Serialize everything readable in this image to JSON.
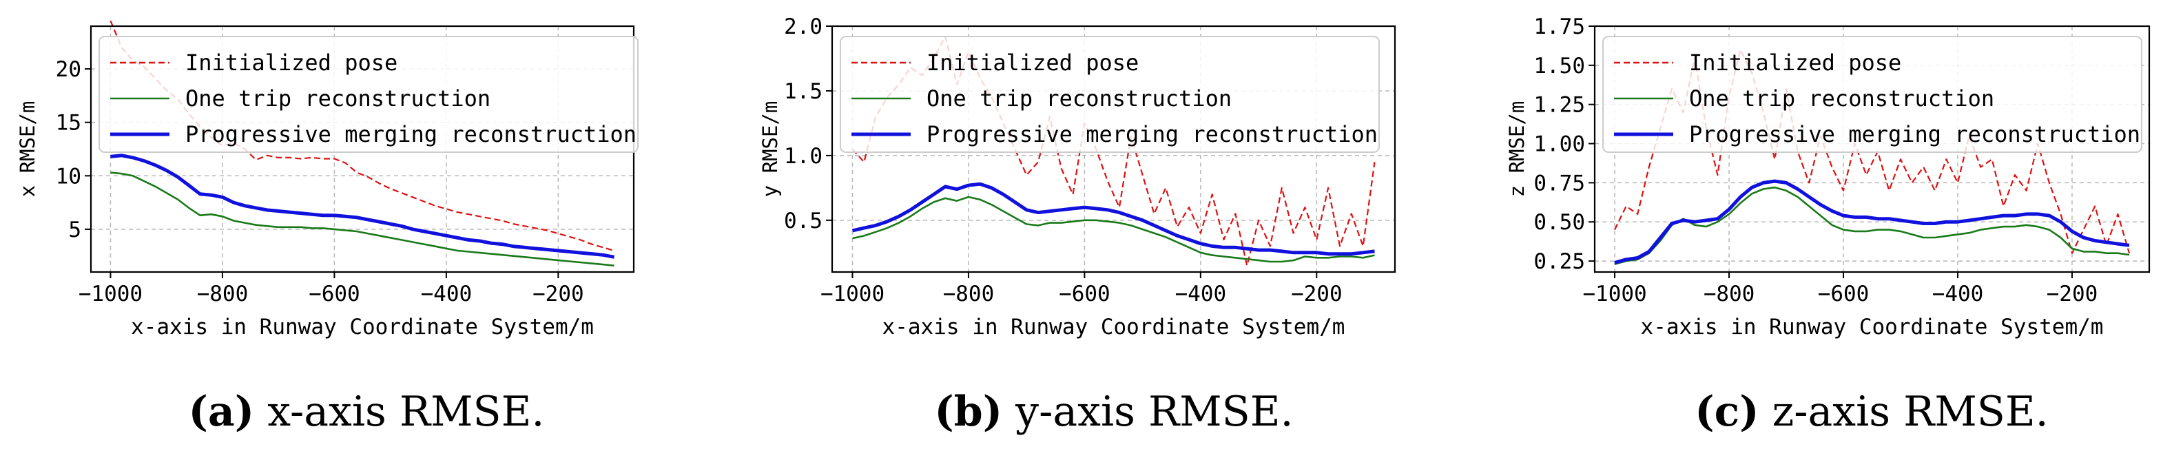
{
  "chart_data": [
    {
      "type": "line",
      "caption_letter": "(a)",
      "caption_text": " x-axis RMSE.",
      "xlabel": "x-axis in Runway Coordinate System/m",
      "ylabel": "x RMSE/m",
      "xlim": [
        -1035,
        -65
      ],
      "ylim": [
        1,
        24
      ],
      "xticks": [
        -1000,
        -800,
        -600,
        -400,
        -200
      ],
      "xtick_labels": [
        "−1000",
        "−800",
        "−600",
        "−400",
        "−200"
      ],
      "yticks": [
        5,
        10,
        15,
        20
      ],
      "ytick_labels": [
        "5",
        "10",
        "15",
        "20"
      ],
      "grid": true,
      "legend_position": "upper-left",
      "series": [
        {
          "name": "Initialized pose",
          "color": "#dd1111",
          "style": "dashed",
          "x": [
            -1000,
            -980,
            -960,
            -940,
            -920,
            -900,
            -880,
            -860,
            -840,
            -820,
            -800,
            -780,
            -760,
            -740,
            -720,
            -700,
            -680,
            -660,
            -640,
            -620,
            -600,
            -580,
            -560,
            -540,
            -520,
            -500,
            -480,
            -460,
            -440,
            -420,
            -400,
            -380,
            -360,
            -340,
            -320,
            -300,
            -280,
            -260,
            -240,
            -220,
            -200,
            -180,
            -160,
            -140,
            -120,
            -100
          ],
          "y": [
            24.5,
            22.0,
            20.8,
            20.2,
            19.1,
            18.0,
            17.2,
            15.8,
            14.6,
            13.6,
            12.8,
            13.1,
            12.5,
            11.5,
            11.9,
            11.7,
            11.7,
            11.6,
            11.7,
            11.6,
            11.6,
            11.2,
            10.3,
            9.9,
            9.3,
            8.8,
            8.4,
            8.0,
            7.6,
            7.2,
            6.9,
            6.6,
            6.4,
            6.2,
            6.0,
            5.8,
            5.5,
            5.3,
            5.1,
            4.9,
            4.6,
            4.3,
            4.0,
            3.6,
            3.3,
            3.0
          ]
        },
        {
          "name": "One trip reconstruction",
          "color": "#1a7a1a",
          "style": "solid",
          "x": [
            -1000,
            -980,
            -960,
            -940,
            -920,
            -900,
            -880,
            -860,
            -840,
            -820,
            -800,
            -780,
            -760,
            -740,
            -720,
            -700,
            -680,
            -660,
            -640,
            -620,
            -600,
            -580,
            -560,
            -540,
            -520,
            -500,
            -480,
            -460,
            -440,
            -420,
            -400,
            -380,
            -360,
            -340,
            -320,
            -300,
            -280,
            -260,
            -240,
            -220,
            -200,
            -180,
            -160,
            -140,
            -120,
            -100
          ],
          "y": [
            10.3,
            10.2,
            10.0,
            9.5,
            9.0,
            8.4,
            7.8,
            7.0,
            6.3,
            6.4,
            6.2,
            5.8,
            5.6,
            5.4,
            5.3,
            5.2,
            5.2,
            5.2,
            5.1,
            5.1,
            5.0,
            4.9,
            4.8,
            4.6,
            4.4,
            4.2,
            4.0,
            3.8,
            3.6,
            3.4,
            3.2,
            3.0,
            2.9,
            2.8,
            2.7,
            2.6,
            2.5,
            2.4,
            2.3,
            2.2,
            2.1,
            2.0,
            1.9,
            1.8,
            1.7,
            1.6
          ]
        },
        {
          "name": "Progressive merging reconstruction",
          "color": "#1111dd",
          "style": "solid",
          "x": [
            -1000,
            -980,
            -960,
            -940,
            -920,
            -900,
            -880,
            -860,
            -840,
            -820,
            -800,
            -780,
            -760,
            -740,
            -720,
            -700,
            -680,
            -660,
            -640,
            -620,
            -600,
            -580,
            -560,
            -540,
            -520,
            -500,
            -480,
            -460,
            -440,
            -420,
            -400,
            -380,
            -360,
            -340,
            -320,
            -300,
            -280,
            -260,
            -240,
            -220,
            -200,
            -180,
            -160,
            -140,
            -120,
            -100
          ],
          "y": [
            11.8,
            11.9,
            11.7,
            11.4,
            11.0,
            10.5,
            9.9,
            9.1,
            8.3,
            8.2,
            8.0,
            7.5,
            7.2,
            7.0,
            6.8,
            6.7,
            6.6,
            6.5,
            6.4,
            6.3,
            6.3,
            6.2,
            6.1,
            5.9,
            5.7,
            5.5,
            5.3,
            5.0,
            4.8,
            4.6,
            4.4,
            4.2,
            4.0,
            3.9,
            3.7,
            3.6,
            3.4,
            3.3,
            3.2,
            3.1,
            3.0,
            2.9,
            2.8,
            2.7,
            2.6,
            2.4
          ]
        }
      ]
    },
    {
      "type": "line",
      "caption_letter": "(b)",
      "caption_text": " y-axis RMSE.",
      "xlabel": "x-axis in Runway Coordinate System/m",
      "ylabel": "y RMSE/m",
      "xlim": [
        -1035,
        -65
      ],
      "ylim": [
        0.1,
        2.0
      ],
      "xticks": [
        -1000,
        -800,
        -600,
        -400,
        -200
      ],
      "xtick_labels": [
        "−1000",
        "−800",
        "−600",
        "−400",
        "−200"
      ],
      "yticks": [
        0.5,
        1.0,
        1.5,
        2.0
      ],
      "ytick_labels": [
        "0.5",
        "1.0",
        "1.5",
        "2.0"
      ],
      "grid": true,
      "legend_position": "upper-left",
      "series": [
        {
          "name": "Initialized pose",
          "color": "#dd1111",
          "style": "dashed",
          "x": [
            -1000,
            -980,
            -960,
            -940,
            -920,
            -900,
            -880,
            -860,
            -840,
            -820,
            -800,
            -780,
            -760,
            -740,
            -720,
            -700,
            -680,
            -660,
            -640,
            -620,
            -600,
            -580,
            -560,
            -540,
            -520,
            -500,
            -480,
            -460,
            -440,
            -420,
            -400,
            -380,
            -360,
            -340,
            -320,
            -300,
            -280,
            -260,
            -240,
            -220,
            -200,
            -180,
            -160,
            -140,
            -120,
            -100
          ],
          "y": [
            1.05,
            0.95,
            1.3,
            1.45,
            1.55,
            1.68,
            1.62,
            1.75,
            1.92,
            1.55,
            1.8,
            1.6,
            1.45,
            1.25,
            1.05,
            0.85,
            0.95,
            1.3,
            0.9,
            0.7,
            1.25,
            1.05,
            0.8,
            0.6,
            1.15,
            0.85,
            0.55,
            0.75,
            0.45,
            0.6,
            0.4,
            0.7,
            0.35,
            0.55,
            0.15,
            0.5,
            0.3,
            0.75,
            0.4,
            0.6,
            0.35,
            0.75,
            0.3,
            0.55,
            0.3,
            0.95
          ]
        },
        {
          "name": "One trip reconstruction",
          "color": "#1a7a1a",
          "style": "solid",
          "x": [
            -1000,
            -980,
            -960,
            -940,
            -920,
            -900,
            -880,
            -860,
            -840,
            -820,
            -800,
            -780,
            -760,
            -740,
            -720,
            -700,
            -680,
            -660,
            -640,
            -620,
            -600,
            -580,
            -560,
            -540,
            -520,
            -500,
            -480,
            -460,
            -440,
            -420,
            -400,
            -380,
            -360,
            -340,
            -320,
            -300,
            -280,
            -260,
            -240,
            -220,
            -200,
            -180,
            -160,
            -140,
            -120,
            -100
          ],
          "y": [
            0.36,
            0.38,
            0.41,
            0.44,
            0.48,
            0.53,
            0.59,
            0.64,
            0.67,
            0.65,
            0.68,
            0.66,
            0.62,
            0.57,
            0.52,
            0.47,
            0.46,
            0.48,
            0.48,
            0.49,
            0.5,
            0.5,
            0.49,
            0.48,
            0.46,
            0.43,
            0.4,
            0.37,
            0.33,
            0.29,
            0.25,
            0.23,
            0.22,
            0.21,
            0.2,
            0.19,
            0.18,
            0.18,
            0.19,
            0.22,
            0.21,
            0.21,
            0.22,
            0.22,
            0.21,
            0.23
          ]
        },
        {
          "name": "Progressive merging reconstruction",
          "color": "#1111dd",
          "style": "solid",
          "x": [
            -1000,
            -980,
            -960,
            -940,
            -920,
            -900,
            -880,
            -860,
            -840,
            -820,
            -800,
            -780,
            -760,
            -740,
            -720,
            -700,
            -680,
            -660,
            -640,
            -620,
            -600,
            -580,
            -560,
            -540,
            -520,
            -500,
            -480,
            -460,
            -440,
            -420,
            -400,
            -380,
            -360,
            -340,
            -320,
            -300,
            -280,
            -260,
            -240,
            -220,
            -200,
            -180,
            -160,
            -140,
            -120,
            -100
          ],
          "y": [
            0.42,
            0.44,
            0.46,
            0.49,
            0.53,
            0.58,
            0.64,
            0.7,
            0.76,
            0.74,
            0.77,
            0.78,
            0.75,
            0.7,
            0.64,
            0.58,
            0.56,
            0.57,
            0.58,
            0.59,
            0.6,
            0.59,
            0.58,
            0.56,
            0.53,
            0.5,
            0.46,
            0.42,
            0.38,
            0.35,
            0.32,
            0.3,
            0.29,
            0.29,
            0.28,
            0.27,
            0.27,
            0.26,
            0.25,
            0.25,
            0.25,
            0.24,
            0.24,
            0.24,
            0.25,
            0.26
          ]
        }
      ]
    },
    {
      "type": "line",
      "caption_letter": "(c)",
      "caption_text": " z-axis RMSE.",
      "xlabel": "x-axis in Runway Coordinate System/m",
      "ylabel": "z RMSE/m",
      "xlim": [
        -1035,
        -65
      ],
      "ylim": [
        0.18,
        1.75
      ],
      "xticks": [
        -1000,
        -800,
        -600,
        -400,
        -200
      ],
      "xtick_labels": [
        "−1000",
        "−800",
        "−600",
        "−400",
        "−200"
      ],
      "yticks": [
        0.25,
        0.5,
        0.75,
        1.0,
        1.25,
        1.5,
        1.75
      ],
      "ytick_labels": [
        "0.25",
        "0.50",
        "0.75",
        "1.00",
        "1.25",
        "1.50",
        "1.75"
      ],
      "grid": true,
      "legend_position": "upper-left",
      "series": [
        {
          "name": "Initialized pose",
          "color": "#dd1111",
          "style": "dashed",
          "x": [
            -1000,
            -980,
            -960,
            -940,
            -920,
            -900,
            -880,
            -860,
            -840,
            -820,
            -800,
            -780,
            -760,
            -740,
            -720,
            -700,
            -680,
            -660,
            -640,
            -620,
            -600,
            -580,
            -560,
            -540,
            -520,
            -500,
            -480,
            -460,
            -440,
            -420,
            -400,
            -380,
            -360,
            -340,
            -320,
            -300,
            -280,
            -260,
            -240,
            -220,
            -200,
            -180,
            -160,
            -140,
            -120,
            -100
          ],
          "y": [
            0.45,
            0.6,
            0.55,
            0.85,
            1.1,
            1.35,
            1.2,
            1.55,
            1.1,
            0.8,
            1.3,
            1.6,
            1.45,
            1.2,
            0.9,
            1.35,
            0.95,
            0.75,
            1.05,
            0.85,
            0.7,
            1.0,
            0.8,
            0.95,
            0.7,
            0.9,
            0.75,
            0.85,
            0.7,
            0.9,
            0.75,
            1.05,
            0.85,
            0.9,
            0.6,
            0.8,
            0.7,
            1.0,
            0.75,
            0.55,
            0.3,
            0.45,
            0.6,
            0.35,
            0.55,
            0.3
          ]
        },
        {
          "name": "One trip reconstruction",
          "color": "#1a7a1a",
          "style": "solid",
          "x": [
            -1000,
            -980,
            -960,
            -940,
            -920,
            -900,
            -880,
            -860,
            -840,
            -820,
            -800,
            -780,
            -760,
            -740,
            -720,
            -700,
            -680,
            -660,
            -640,
            -620,
            -600,
            -580,
            -560,
            -540,
            -520,
            -500,
            -480,
            -460,
            -440,
            -420,
            -400,
            -380,
            -360,
            -340,
            -320,
            -300,
            -280,
            -260,
            -240,
            -220,
            -200,
            -180,
            -160,
            -140,
            -120,
            -100
          ],
          "y": [
            0.23,
            0.25,
            0.26,
            0.3,
            0.38,
            0.48,
            0.52,
            0.48,
            0.47,
            0.5,
            0.55,
            0.62,
            0.68,
            0.71,
            0.72,
            0.7,
            0.66,
            0.6,
            0.54,
            0.48,
            0.45,
            0.44,
            0.44,
            0.45,
            0.45,
            0.44,
            0.42,
            0.4,
            0.4,
            0.41,
            0.42,
            0.43,
            0.45,
            0.46,
            0.47,
            0.47,
            0.48,
            0.47,
            0.45,
            0.4,
            0.33,
            0.31,
            0.31,
            0.3,
            0.3,
            0.29
          ]
        },
        {
          "name": "Progressive merging reconstruction",
          "color": "#1111dd",
          "style": "solid",
          "x": [
            -1000,
            -980,
            -960,
            -940,
            -920,
            -900,
            -880,
            -860,
            -840,
            -820,
            -800,
            -780,
            -760,
            -740,
            -720,
            -700,
            -680,
            -660,
            -640,
            -620,
            -600,
            -580,
            -560,
            -540,
            -520,
            -500,
            -480,
            -460,
            -440,
            -420,
            -400,
            -380,
            -360,
            -340,
            -320,
            -300,
            -280,
            -260,
            -240,
            -220,
            -200,
            -180,
            -160,
            -140,
            -120,
            -100
          ],
          "y": [
            0.24,
            0.26,
            0.27,
            0.31,
            0.4,
            0.49,
            0.51,
            0.5,
            0.51,
            0.52,
            0.58,
            0.66,
            0.72,
            0.75,
            0.76,
            0.75,
            0.71,
            0.66,
            0.61,
            0.57,
            0.54,
            0.53,
            0.53,
            0.52,
            0.52,
            0.51,
            0.5,
            0.49,
            0.49,
            0.5,
            0.5,
            0.51,
            0.52,
            0.53,
            0.54,
            0.54,
            0.55,
            0.55,
            0.54,
            0.5,
            0.44,
            0.4,
            0.38,
            0.37,
            0.36,
            0.35
          ]
        }
      ]
    }
  ]
}
